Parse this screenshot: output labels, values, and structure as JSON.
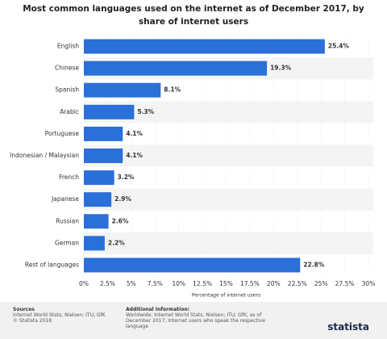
{
  "chart_data": {
    "type": "hbar",
    "title": "Most common languages used on the internet as of December 2017, by share of internet users",
    "x_label": "Percentage of internet users",
    "categories": [
      "English",
      "Chinese",
      "Spanish",
      "Arabic",
      "Portuguese",
      "Indonesian / Malaysian",
      "French",
      "Japanese",
      "Russian",
      "German",
      "Rest of languages"
    ],
    "values": [
      25.4,
      19.3,
      8.1,
      5.3,
      4.1,
      4.1,
      3.2,
      2.9,
      2.6,
      2.2,
      22.8
    ],
    "value_labels": [
      "25.4%",
      "19.3%",
      "8.1%",
      "5.3%",
      "4.1%",
      "4.1%",
      "3.2%",
      "2.9%",
      "2.6%",
      "2.2%",
      "22.8%"
    ],
    "color": "#2b6fd8",
    "xlim": [
      0,
      30
    ],
    "xticks": [
      {
        "value": 0,
        "label": "0%"
      },
      {
        "value": 2.5,
        "label": "2.5%"
      },
      {
        "value": 5,
        "label": "5%"
      },
      {
        "value": 7.5,
        "label": "7.5%"
      },
      {
        "value": 10,
        "label": "10%"
      },
      {
        "value": 12.5,
        "label": "12.5%"
      },
      {
        "value": 15,
        "label": "15%"
      },
      {
        "value": 17.5,
        "label": "17.5%"
      },
      {
        "value": 20,
        "label": "20%"
      },
      {
        "value": 22.5,
        "label": "22.5%"
      },
      {
        "value": 25,
        "label": "25%"
      },
      {
        "value": 27.5,
        "label": "27.5%"
      },
      {
        "value": 30,
        "label": "30%"
      }
    ]
  },
  "footer": {
    "sources_title": "Sources",
    "sources": "Internet World Stats; Nielsen; ITU; GfK",
    "copyright": "© Statista 2018",
    "info_title": "Additional Information:",
    "info": "Worldwide; Internet World Stats; Nielsen; ITU; GfK; as of December 2017; Internet users who speak the respective language",
    "logo": "statista"
  }
}
